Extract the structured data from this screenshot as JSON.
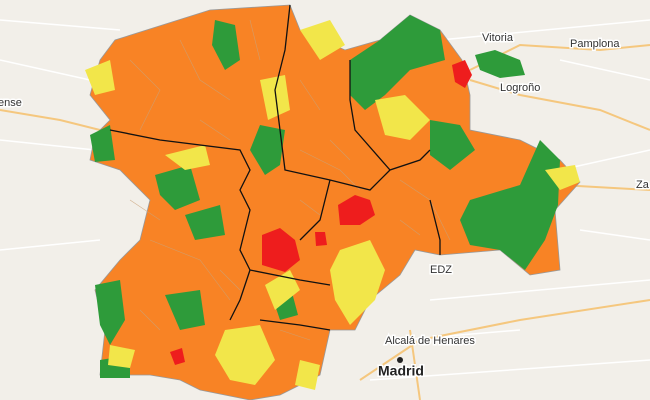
{
  "labels": [
    "Vitoria",
    "Pamplona",
    "Logroño",
    "ense",
    "Za",
    "EDZ",
    "Alcalá de Henares",
    "Madrid"
  ]
}
